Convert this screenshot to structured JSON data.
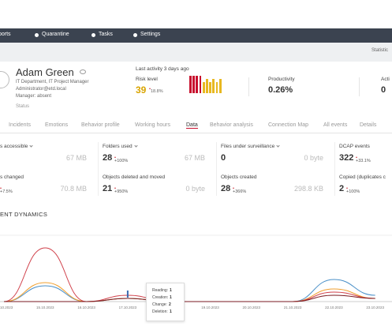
{
  "nav": [
    "ports",
    "Quarantine",
    "Tasks",
    "Settings"
  ],
  "subbar": "Statistic",
  "profile": {
    "name": "Adam Green",
    "department": "IT Department, IT Project Manager",
    "email": "Administrator@etd.local",
    "manager": "Manager: absent",
    "status": "Status"
  },
  "summary": {
    "last_activity": "Last activity 3 days ago",
    "risk_label": "Risk level",
    "risk_value": 39,
    "risk_change": "18.8%",
    "productivity_label": "Productivity",
    "productivity_value": "0.26%",
    "activity_label": "Acti",
    "activity_value": 0
  },
  "tabs": [
    "Incidents",
    "Emotions",
    "Behavior profile",
    "Working hours",
    "Data",
    "Behavior analysis",
    "Connection Map",
    "All events",
    "Details"
  ],
  "cards": [
    {
      "title": "s accessible",
      "size": "67 MB"
    },
    {
      "title": "Folders used",
      "value": 28,
      "change": "+100%",
      "size": "67 MB"
    },
    {
      "title": "Files under surveillance",
      "value": 0,
      "size": "0 byte"
    },
    {
      "title": "DCAP events",
      "value": 322,
      "change": "+33.1%"
    },
    {
      "title": "s changed",
      "change": "+7.5%",
      "size": "70.8 MB"
    },
    {
      "title": "Objects deleted and moved",
      "value": 21,
      "change": "+950%",
      "size": "0 byte"
    },
    {
      "title": "Objects created",
      "value": 28,
      "change": "+366%",
      "size": "298.8 KB"
    },
    {
      "title": "Copied (duplicates c",
      "value": 2,
      "change": "+100%"
    }
  ],
  "chart_data": {
    "type": "line",
    "title": "ENT DYNAMICS",
    "categories": [
      "14.10.2023",
      "15.10.2023",
      "16.10.2023",
      "17.10.2023",
      "18.10.2023",
      "19.10.2023",
      "20.10.2023",
      "21.10.2023",
      "22.10.2023",
      "23.10.2023"
    ],
    "ylim": [
      0,
      20
    ],
    "series": [
      {
        "color": "#4a90c8",
        "values": [
          0,
          5,
          0,
          1,
          0,
          0,
          0,
          0,
          7,
          2
        ]
      },
      {
        "color": "#f0a030",
        "values": [
          0,
          6,
          0,
          1,
          0,
          0,
          0,
          0,
          4,
          1
        ]
      },
      {
        "color": "#d0404a",
        "values": [
          0,
          17,
          0,
          2,
          0,
          0,
          0,
          0,
          3,
          1
        ]
      },
      {
        "color": "#7a1a20",
        "values": [
          0,
          0,
          0,
          1,
          0,
          0,
          0,
          0,
          2,
          1
        ]
      }
    ],
    "tooltip": [
      {
        "label": "Reading:",
        "value": 1
      },
      {
        "label": "Creation:",
        "value": 1
      },
      {
        "label": "Change:",
        "value": 2
      },
      {
        "label": "Deletion:",
        "value": 1
      }
    ]
  }
}
